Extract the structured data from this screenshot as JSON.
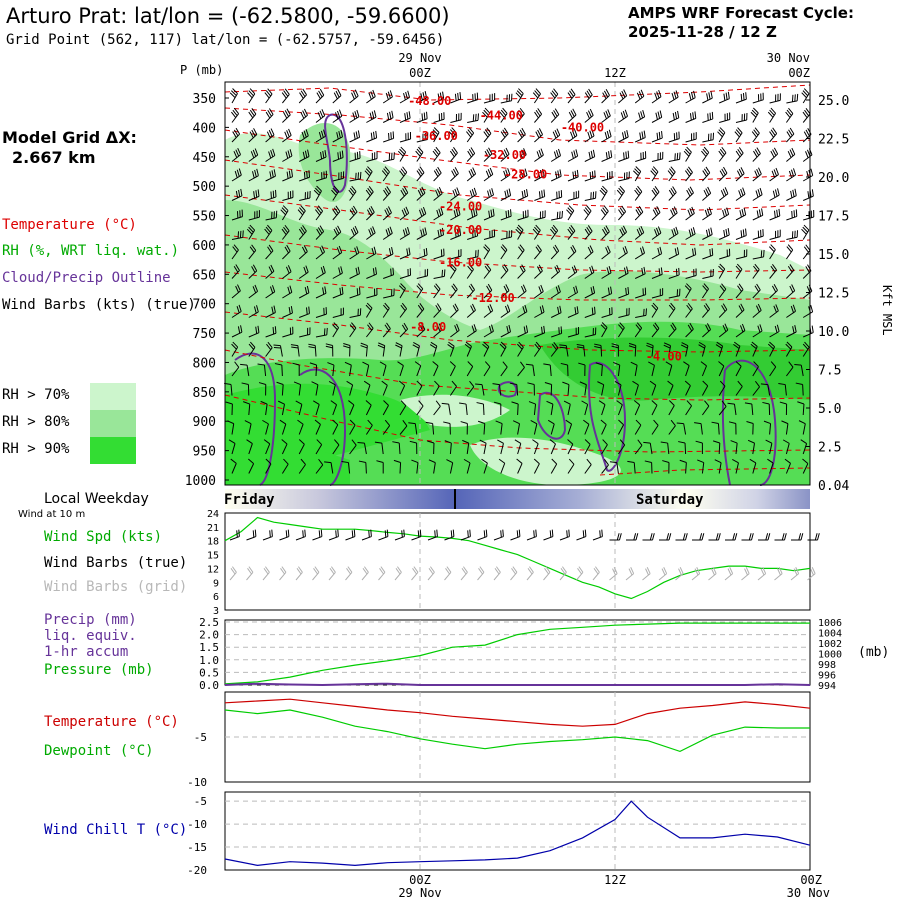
{
  "header": {
    "title": "Arturo Prat:  lat/lon = (-62.5800, -59.6600)",
    "subtitle": "Grid Point (562, 117) lat/lon = (-62.5757, -59.6456)",
    "cycle_line1": "AMPS WRF Forecast Cycle:",
    "cycle_line2": "2025-11-28 / 12  Z"
  },
  "left_panel": {
    "model_grid_line1": "Model Grid ΔX:",
    "model_grid_line2": "2.667 km",
    "legend_temperature": "Temperature (°C)",
    "legend_rh": "RH (%, WRT liq. wat.)",
    "legend_cloud": "Cloud/Precip Outline",
    "legend_wind": "Wind Barbs (kts) (true)",
    "rh_key": [
      {
        "label": "RH > 70%",
        "color": "#ccf5cc"
      },
      {
        "label": "RH > 80%",
        "color": "#99e699"
      },
      {
        "label": "RH > 90%",
        "color": "#33dd33"
      }
    ]
  },
  "colors": {
    "temperature": "#dd0000",
    "rh_text": "#00aa00",
    "cloud": "#663399",
    "wind_chill": "#0000aa",
    "dewpoint": "#00cc00",
    "grid_barbs": "#b0b0b0"
  },
  "chart_data": [
    {
      "type": "heatmap",
      "name": "cross-section",
      "ylabel_left": "P (mb)",
      "ylabel_right": "Kft MSL",
      "y_ticks_mb": [
        "350",
        "400",
        "450",
        "500",
        "550",
        "600",
        "650",
        "700",
        "750",
        "800",
        "850",
        "900",
        "950",
        "1000"
      ],
      "y_ticks_kft": [
        "25.0",
        "22.5",
        "20.0",
        "17.5",
        "15.0",
        "12.5",
        "10.0",
        "7.5",
        "5.0",
        "2.5",
        "0.04"
      ],
      "x_top_labels": [
        {
          "date": "29 Nov",
          "time": "00Z",
          "hour": 12
        },
        {
          "date": "",
          "time": "12Z",
          "hour": 24
        },
        {
          "date": "30 Nov",
          "time": "00Z",
          "hour": 36
        }
      ],
      "x_range_hours": [
        0,
        36
      ],
      "temperature_contours": [
        {
          "label": "-48.00",
          "hour": 12.6,
          "p": 355
        },
        {
          "label": "-44.00",
          "hour": 17.0,
          "p": 380
        },
        {
          "label": "-40.00",
          "hour": 22.0,
          "p": 400
        },
        {
          "label": "-36.00",
          "hour": 13.0,
          "p": 415
        },
        {
          "label": "-32.00",
          "hour": 17.2,
          "p": 447
        },
        {
          "label": "-28.00",
          "hour": 18.5,
          "p": 480
        },
        {
          "label": "-24.00",
          "hour": 14.5,
          "p": 535
        },
        {
          "label": "-20.00",
          "hour": 14.5,
          "p": 575
        },
        {
          "label": "-16.00",
          "hour": 14.5,
          "p": 630
        },
        {
          "label": "-12.00",
          "hour": 16.5,
          "p": 690
        },
        {
          "label": "-8.00",
          "hour": 12.5,
          "p": 740
        },
        {
          "label": "-4.00",
          "hour": 27.0,
          "p": 790
        }
      ]
    },
    {
      "type": "line",
      "name": "wind-speed",
      "y_ticks": [
        "24",
        "21",
        "18",
        "15",
        "12",
        "9",
        "6",
        "3"
      ],
      "ylim": [
        3,
        24
      ],
      "x_hours": [
        0,
        1,
        2,
        3,
        4,
        5,
        6,
        7,
        8,
        9,
        10,
        11,
        12,
        13,
        14,
        15,
        16,
        17,
        18,
        19,
        20,
        21,
        22,
        23,
        24,
        25,
        26,
        27,
        28,
        29,
        30,
        31,
        32,
        33,
        34,
        35,
        36
      ],
      "series": [
        {
          "name": "Wind Spd (kts)",
          "values": [
            18,
            20,
            23,
            22,
            21.5,
            21,
            20.5,
            20.5,
            20.5,
            20.2,
            19.8,
            19.5,
            19,
            18.8,
            18.5,
            18,
            17,
            16,
            15,
            13.5,
            12,
            10.5,
            9,
            8,
            6.5,
            5.5,
            7,
            9,
            10.5,
            11.5,
            12,
            12.5,
            12.5,
            12,
            12,
            11.5,
            12
          ]
        }
      ]
    },
    {
      "type": "line",
      "name": "precip-pressure",
      "y_ticks_left": [
        "2.5",
        "2.0",
        "1.5",
        "1.0",
        "0.5",
        "0.0"
      ],
      "y_ticks_right": [
        "1006",
        "1004",
        "1002",
        "1000",
        "998",
        "996",
        "994"
      ],
      "ylabel_right": "(mb)",
      "ylim_left": [
        0,
        2.5
      ],
      "ylim_right": [
        994,
        1006
      ],
      "x_hours": [
        0,
        2,
        4,
        6,
        8,
        10,
        12,
        14,
        16,
        18,
        20,
        22,
        24,
        26,
        28,
        30,
        32,
        34,
        36
      ],
      "series": [
        {
          "name": "Pressure (mb)",
          "values": [
            994.2,
            994.6,
            995.5,
            996.8,
            997.8,
            998.6,
            999.6,
            1001.2,
            1001.6,
            1003.6,
            1004.6,
            1005.0,
            1005.4,
            1005.6,
            1005.8,
            1005.8,
            1005.8,
            1005.8,
            1005.8
          ]
        },
        {
          "name": "Precip (mm)",
          "values": [
            0.0,
            0.05,
            0.02,
            0.0,
            0.03,
            0.05,
            0.0,
            0.0,
            0.0,
            0.0,
            0.0,
            0.0,
            0.0,
            0.0,
            0.0,
            0.0,
            0.0,
            0.03,
            0.0
          ]
        }
      ]
    },
    {
      "type": "line",
      "name": "temperature-dewpoint",
      "y_ticks": [
        "-5",
        "-10"
      ],
      "ylim": [
        -10,
        0
      ],
      "x_hours": [
        0,
        2,
        4,
        6,
        8,
        10,
        12,
        14,
        16,
        18,
        20,
        22,
        24,
        26,
        28,
        30,
        32,
        34,
        36
      ],
      "series": [
        {
          "name": "Temperature (°C)",
          "values": [
            -1.2,
            -1.0,
            -0.8,
            -1.2,
            -1.6,
            -2.0,
            -2.3,
            -2.7,
            -3.0,
            -3.3,
            -3.6,
            -3.8,
            -3.6,
            -2.4,
            -1.8,
            -1.5,
            -1.1,
            -1.4,
            -1.8
          ]
        },
        {
          "name": "Dewpoint (°C)",
          "values": [
            -2.0,
            -2.4,
            -2.0,
            -2.8,
            -3.8,
            -4.4,
            -5.2,
            -5.8,
            -6.3,
            -5.8,
            -5.5,
            -5.3,
            -5.0,
            -5.4,
            -6.6,
            -4.8,
            -3.9,
            -4.0,
            -4.0
          ]
        }
      ]
    },
    {
      "type": "line",
      "name": "wind-chill",
      "y_ticks": [
        "-5",
        "-10",
        "-15",
        "-20"
      ],
      "ylim": [
        -20,
        -3
      ],
      "x_hours": [
        0,
        2,
        4,
        6,
        8,
        10,
        12,
        14,
        16,
        18,
        20,
        22,
        24,
        25,
        26,
        28,
        30,
        32,
        34,
        36
      ],
      "x_bottom_labels": [
        {
          "time": "00Z",
          "date": "29 Nov",
          "hour": 12
        },
        {
          "time": "12Z",
          "date": "",
          "hour": 24
        },
        {
          "time": "00Z",
          "date": "30 Nov",
          "hour": 36
        }
      ],
      "series": [
        {
          "name": "Wind Chill T (°C)",
          "values": [
            -17.6,
            -19.0,
            -18.2,
            -18.5,
            -19.0,
            -18.4,
            -18.2,
            -18.0,
            -17.8,
            -17.4,
            -15.8,
            -13.0,
            -9.0,
            -5.0,
            -8.5,
            -13.0,
            -13.0,
            -12.2,
            -12.8,
            -14.6
          ]
        }
      ]
    }
  ],
  "weekday_strip": {
    "title": "Local Weekday",
    "day1": "Friday",
    "day2": "Saturday"
  },
  "wind_panel": {
    "sub": "Wind at 10 m",
    "label_speed": "Wind Spd (kts)",
    "label_true": "Wind Barbs (true)",
    "label_grid": "Wind Barbs (grid)"
  },
  "precip_panel": {
    "label_precip": "Precip (mm)",
    "label_liq": "liq. equiv.",
    "label_accum": "1-hr accum",
    "label_pressure": "Pressure (mb)"
  },
  "temp_panel": {
    "label_temp": "Temperature (°C)",
    "label_dew": "Dewpoint (°C)"
  },
  "chill_panel": {
    "label": "Wind Chill T (°C)"
  }
}
